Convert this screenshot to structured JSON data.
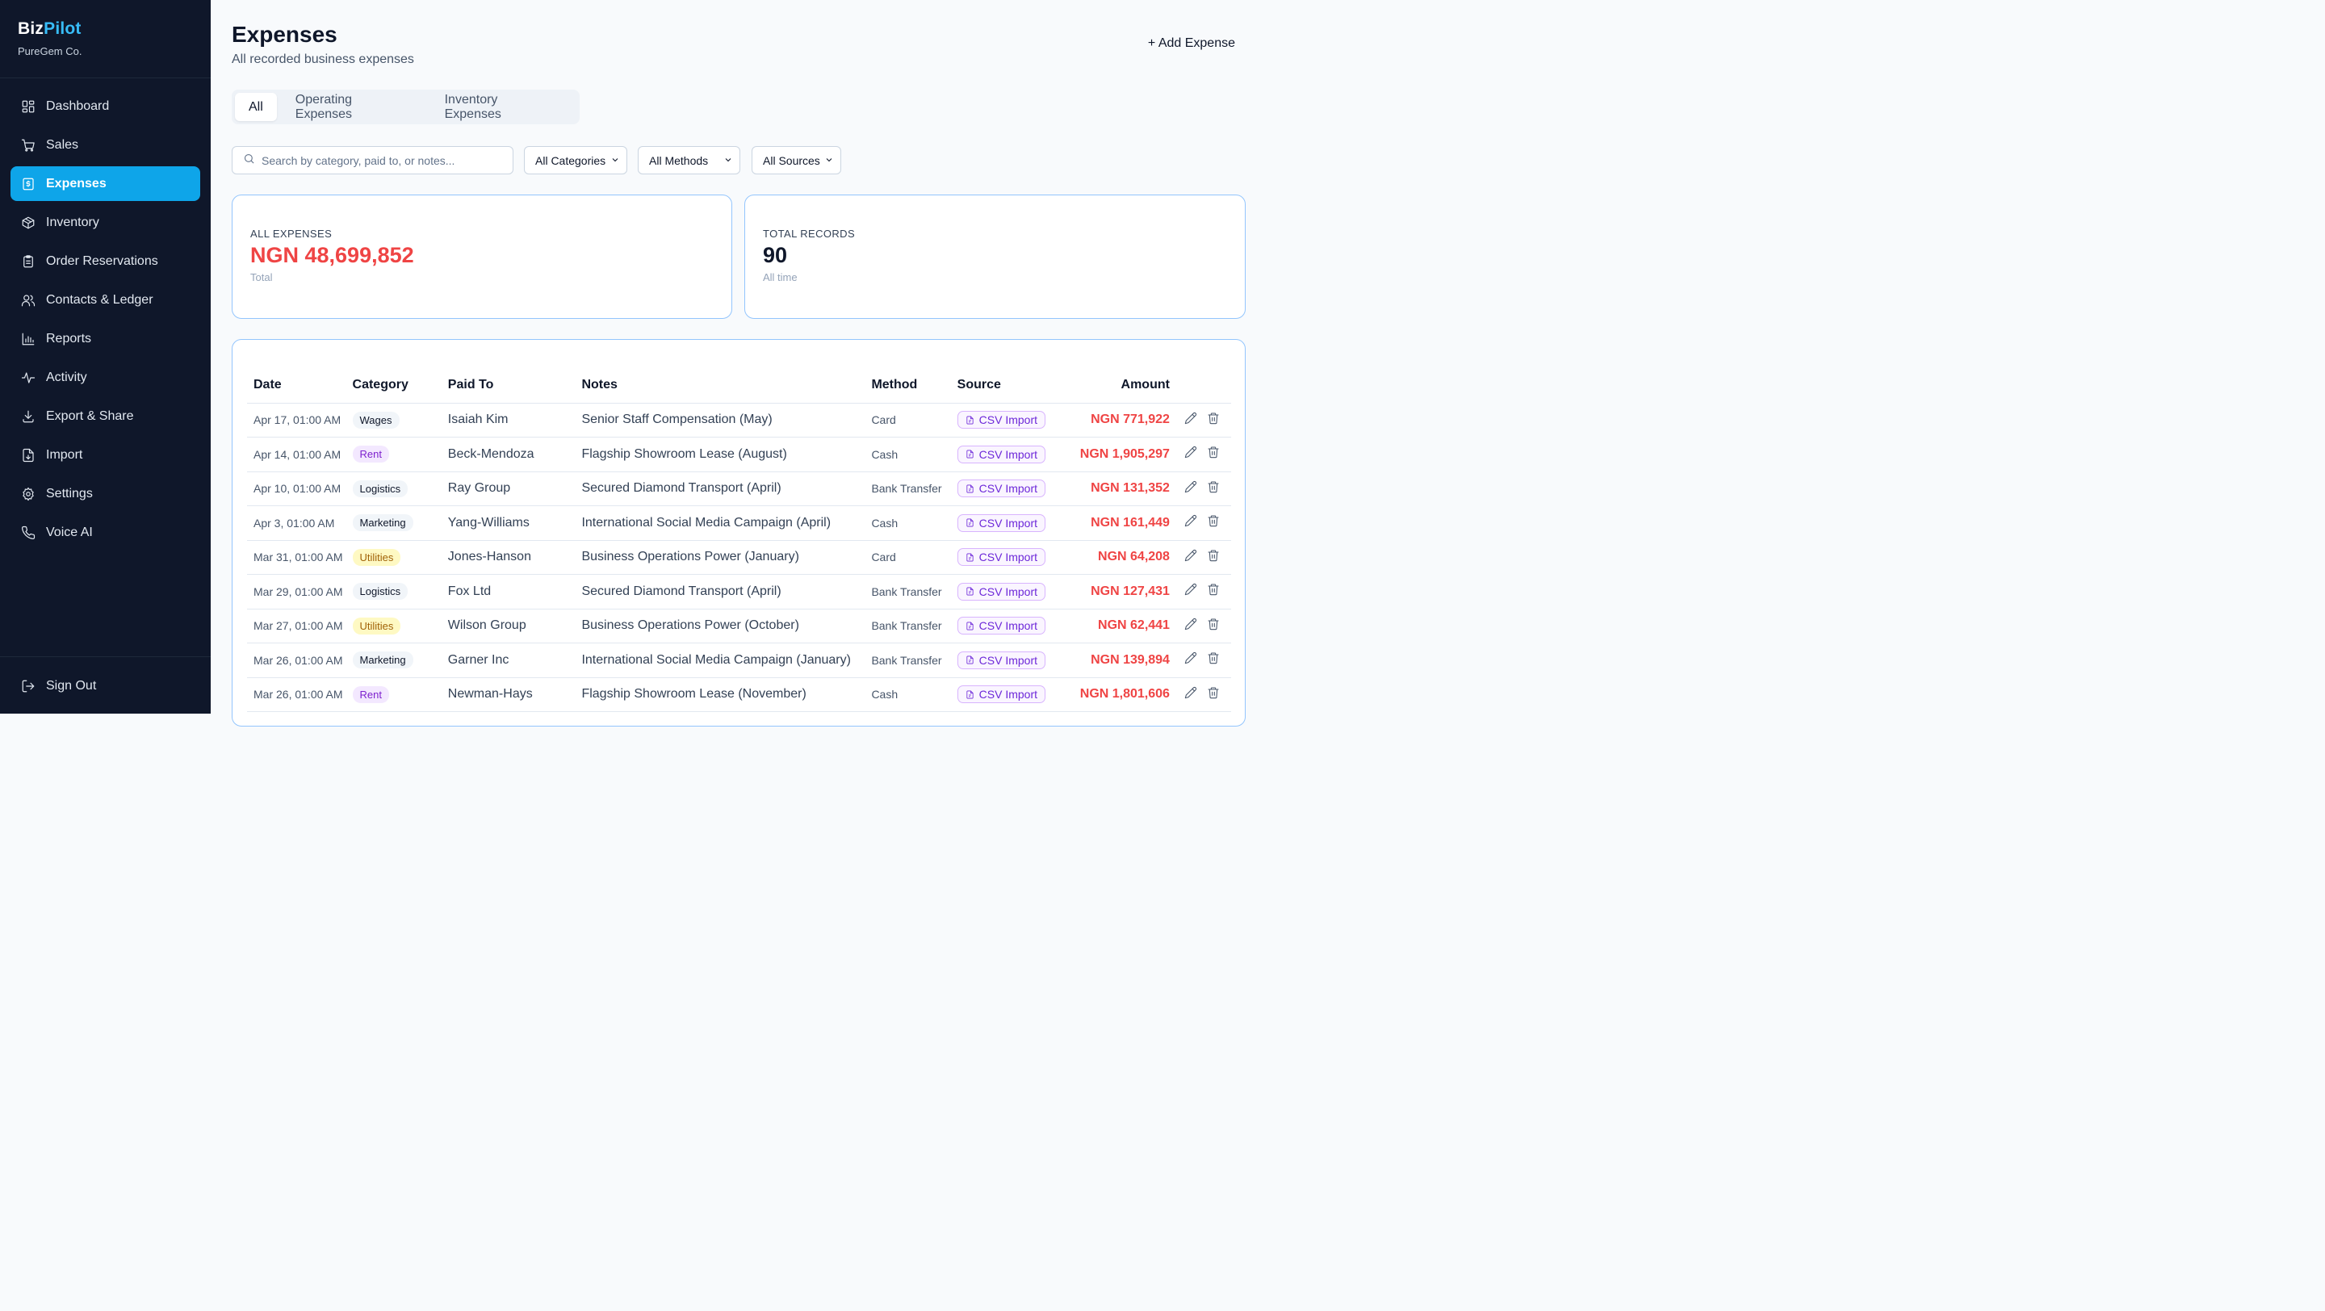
{
  "brand": {
    "name_part1": "Biz",
    "name_part2": "Pilot",
    "company": "PureGem Co."
  },
  "colors": {
    "sidebar_bg": "#0f172a",
    "accent": "#0ea5e9",
    "negative": "#ef4444"
  },
  "nav": [
    {
      "label": "Dashboard",
      "icon": "dashboard-icon"
    },
    {
      "label": "Sales",
      "icon": "cart-icon"
    },
    {
      "label": "Expenses",
      "icon": "receipt-icon",
      "active": true
    },
    {
      "label": "Inventory",
      "icon": "box-icon"
    },
    {
      "label": "Order Reservations",
      "icon": "clipboard-icon"
    },
    {
      "label": "Contacts & Ledger",
      "icon": "users-icon"
    },
    {
      "label": "Reports",
      "icon": "bar-chart-icon"
    },
    {
      "label": "Activity",
      "icon": "activity-icon"
    },
    {
      "label": "Export & Share",
      "icon": "download-icon"
    },
    {
      "label": "Import",
      "icon": "file-import-icon"
    },
    {
      "label": "Settings",
      "icon": "gear-icon"
    },
    {
      "label": "Voice AI",
      "icon": "phone-icon"
    }
  ],
  "footer": {
    "sign_out": "Sign Out"
  },
  "header": {
    "title": "Expenses",
    "subtitle": "All recorded business expenses",
    "add_button": "+ Add Expense"
  },
  "tabs": [
    {
      "label": "All",
      "active": true
    },
    {
      "label": "Operating Expenses"
    },
    {
      "label": "Inventory Expenses"
    }
  ],
  "filters": {
    "search_placeholder": "Search by category, paid to, or notes...",
    "category": "All Categories",
    "method": "All Methods",
    "source": "All Sources"
  },
  "summary": {
    "all_expenses": {
      "label": "ALL EXPENSES",
      "value": "NGN 48,699,852",
      "sub": "Total"
    },
    "total_records": {
      "label": "TOTAL RECORDS",
      "value": "90",
      "sub": "All time"
    }
  },
  "table": {
    "columns": [
      "Date",
      "Category",
      "Paid To",
      "Notes",
      "Method",
      "Source",
      "Amount"
    ],
    "rows": [
      {
        "date": "Apr 17, 01:00 AM",
        "category": "Wages",
        "cat_style": "default",
        "paid_to": "Isaiah Kim",
        "notes": "Senior Staff Compensation (May)",
        "method": "Card",
        "source": "CSV Import",
        "amount": "NGN 771,922"
      },
      {
        "date": "Apr 14, 01:00 AM",
        "category": "Rent",
        "cat_style": "rent",
        "paid_to": "Beck-Mendoza",
        "notes": "Flagship Showroom Lease (August)",
        "method": "Cash",
        "source": "CSV Import",
        "amount": "NGN 1,905,297"
      },
      {
        "date": "Apr 10, 01:00 AM",
        "category": "Logistics",
        "cat_style": "default",
        "paid_to": "Ray Group",
        "notes": "Secured Diamond Transport (April)",
        "method": "Bank Transfer",
        "source": "CSV Import",
        "amount": "NGN 131,352"
      },
      {
        "date": "Apr 3, 01:00 AM",
        "category": "Marketing",
        "cat_style": "default",
        "paid_to": "Yang-Williams",
        "notes": "International Social Media Campaign (April)",
        "method": "Cash",
        "source": "CSV Import",
        "amount": "NGN 161,449"
      },
      {
        "date": "Mar 31, 01:00 AM",
        "category": "Utilities",
        "cat_style": "utilities",
        "paid_to": "Jones-Hanson",
        "notes": "Business Operations Power (January)",
        "method": "Card",
        "source": "CSV Import",
        "amount": "NGN 64,208"
      },
      {
        "date": "Mar 29, 01:00 AM",
        "category": "Logistics",
        "cat_style": "default",
        "paid_to": "Fox Ltd",
        "notes": "Secured Diamond Transport (April)",
        "method": "Bank Transfer",
        "source": "CSV Import",
        "amount": "NGN 127,431"
      },
      {
        "date": "Mar 27, 01:00 AM",
        "category": "Utilities",
        "cat_style": "utilities",
        "paid_to": "Wilson Group",
        "notes": "Business Operations Power (October)",
        "method": "Bank Transfer",
        "source": "CSV Import",
        "amount": "NGN 62,441"
      },
      {
        "date": "Mar 26, 01:00 AM",
        "category": "Marketing",
        "cat_style": "default",
        "paid_to": "Garner Inc",
        "notes": "International Social Media Campaign (January)",
        "method": "Bank Transfer",
        "source": "CSV Import",
        "amount": "NGN 139,894"
      },
      {
        "date": "Mar 26, 01:00 AM",
        "category": "Rent",
        "cat_style": "rent",
        "paid_to": "Newman-Hays",
        "notes": "Flagship Showroom Lease (November)",
        "method": "Cash",
        "source": "CSV Import",
        "amount": "NGN 1,801,606"
      }
    ]
  }
}
